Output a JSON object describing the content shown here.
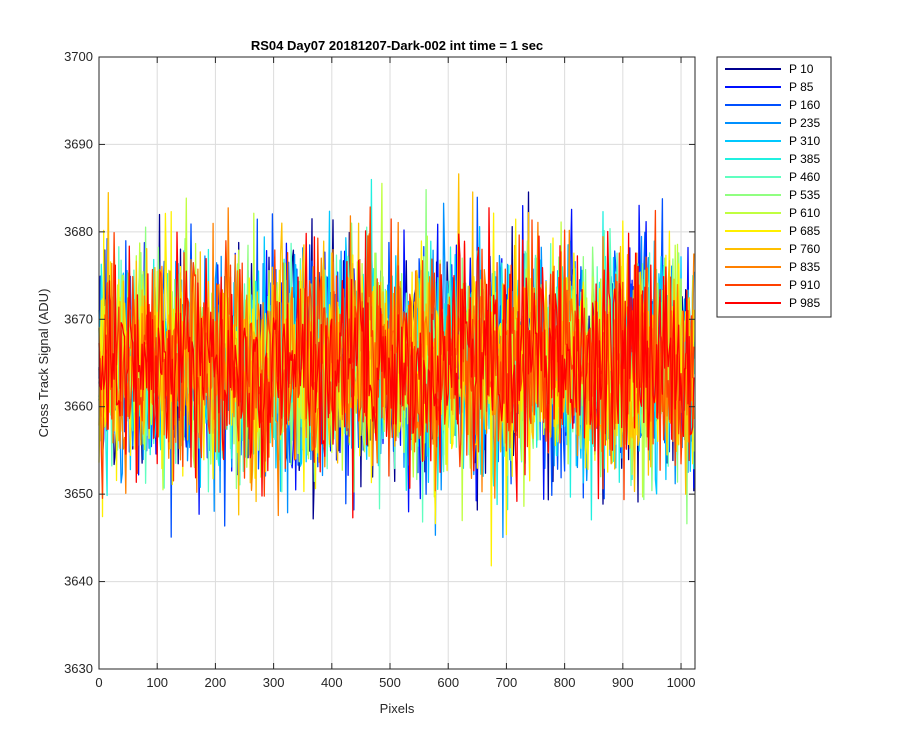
{
  "chart_data": {
    "type": "line",
    "title": "RS04 Day07 20181207-Dark-002 int time = 1 sec",
    "xlabel": "Pixels",
    "ylabel": "Cross Track Signal (ADU)",
    "xlim": [
      0,
      1024
    ],
    "ylim": [
      3630,
      3700
    ],
    "xticks": [
      0,
      100,
      200,
      300,
      400,
      500,
      600,
      700,
      800,
      900,
      1000
    ],
    "yticks": [
      3630,
      3640,
      3650,
      3660,
      3670,
      3680,
      3690,
      3700
    ],
    "grid": true,
    "legend_location": "outside-top-right",
    "data_note": "Noisy dark-frame cross-track signal per pixel (0-1023), centered near 3665 ADU with spread roughly 3640-3698.",
    "series": [
      {
        "name": "P 10",
        "color": "#00008F",
        "mean": 3665,
        "min": 3645,
        "max": 3686
      },
      {
        "name": "P 85",
        "color": "#0010FF",
        "mean": 3665,
        "min": 3641,
        "max": 3687
      },
      {
        "name": "P 160",
        "color": "#0050FF",
        "mean": 3665,
        "min": 3645,
        "max": 3687
      },
      {
        "name": "P 235",
        "color": "#0090FF",
        "mean": 3665,
        "min": 3645,
        "max": 3686
      },
      {
        "name": "P 310",
        "color": "#00C8FF",
        "mean": 3665,
        "min": 3639,
        "max": 3688
      },
      {
        "name": "P 385",
        "color": "#20F0E0",
        "mean": 3665,
        "min": 3646,
        "max": 3687
      },
      {
        "name": "P 460",
        "color": "#60FFC0",
        "mean": 3665,
        "min": 3646,
        "max": 3692
      },
      {
        "name": "P 535",
        "color": "#90FF80",
        "mean": 3665,
        "min": 3646,
        "max": 3690
      },
      {
        "name": "P 610",
        "color": "#C0FF40",
        "mean": 3665,
        "min": 3645,
        "max": 3689
      },
      {
        "name": "P 685",
        "color": "#FFF000",
        "mean": 3665,
        "min": 3640,
        "max": 3698
      },
      {
        "name": "P 760",
        "color": "#FFC000",
        "mean": 3665,
        "min": 3643,
        "max": 3693
      },
      {
        "name": "P 835",
        "color": "#FF8000",
        "mean": 3665,
        "min": 3641,
        "max": 3693
      },
      {
        "name": "P 910",
        "color": "#FF4000",
        "mean": 3665,
        "min": 3643,
        "max": 3693
      },
      {
        "name": "P 985",
        "color": "#FF0000",
        "mean": 3665,
        "min": 3641,
        "max": 3696
      }
    ]
  }
}
